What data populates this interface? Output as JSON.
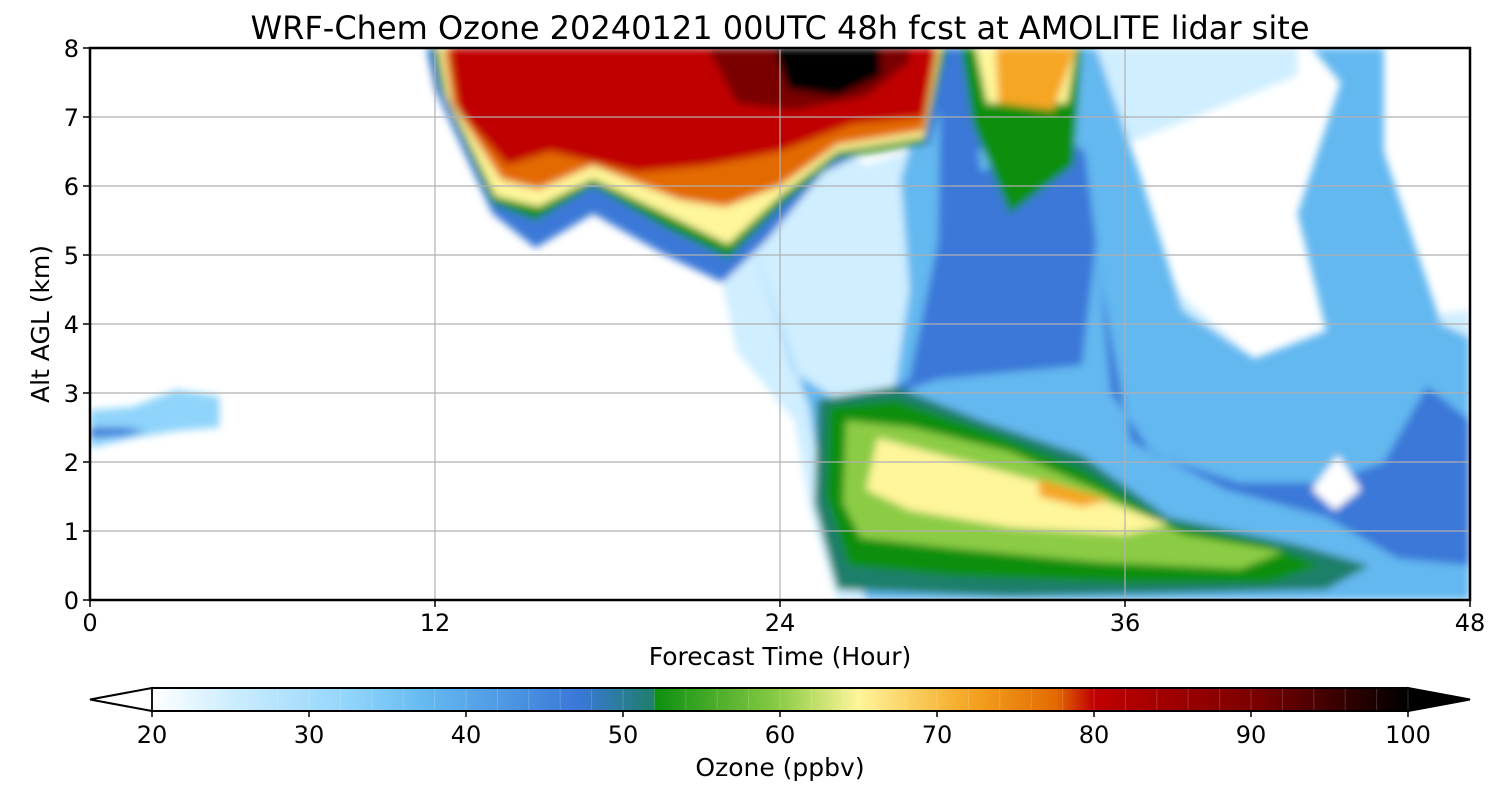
{
  "chart_data": {
    "type": "heatmap",
    "title": "WRF-Chem Ozone  20240121 00UTC 48h fcst at AMOLITE lidar site",
    "xlabel": "Forecast Time (Hour)",
    "ylabel": "Alt AGL (km)",
    "xlim": [
      0,
      48
    ],
    "ylim": [
      0,
      8
    ],
    "xticks": [
      "0",
      "12",
      "24",
      "36",
      "48"
    ],
    "yticks": [
      "0",
      "1",
      "2",
      "3",
      "4",
      "5",
      "6",
      "7",
      "8"
    ],
    "grid": true,
    "colorbar": {
      "label": "Ozone  (ppbv)",
      "range": [
        20,
        100
      ],
      "ticks": [
        "20",
        "30",
        "40",
        "50",
        "60",
        "70",
        "80",
        "90",
        "100"
      ],
      "extend": "both",
      "colors": [
        "#ffffff",
        "#cfeeff",
        "#8fd4fb",
        "#63b8f0",
        "#3a78d8",
        "#1f7f6a",
        "#0d8f10",
        "#8ccc45",
        "#fff59a",
        "#f5a623",
        "#e36a00",
        "#c00000",
        "#7a0000",
        "#000000"
      ]
    },
    "features": [
      {
        "name": "upper-level high ozone",
        "x_range": [
          12,
          30
        ],
        "alt_range": [
          5.5,
          8
        ],
        "peak_ppbv": 100,
        "peak_x": 26,
        "peak_alt": 7.6
      },
      {
        "name": "upper-level moderate ozone",
        "x_range": [
          31,
          35
        ],
        "alt_range": [
          6.5,
          8
        ],
        "peak_ppbv": 70
      },
      {
        "name": "boundary-layer plume",
        "x_range": [
          25,
          43
        ],
        "alt_range": [
          0,
          3
        ],
        "peak_ppbv": 64,
        "peak_x": 33,
        "peak_alt": 1.7
      },
      {
        "name": "mid-level blue region",
        "x_range": [
          28,
          48
        ],
        "alt_range": [
          0,
          8
        ],
        "typical_ppbv": 38
      },
      {
        "name": "low-ozone patch",
        "x_range": [
          0,
          4
        ],
        "alt_range": [
          2.2,
          3
        ],
        "typical_ppbv": 32
      }
    ]
  }
}
